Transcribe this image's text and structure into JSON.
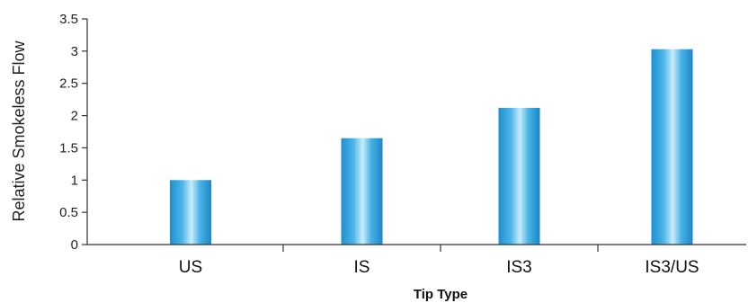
{
  "chart_data": {
    "type": "bar",
    "categories": [
      "US",
      "IS",
      "IS3",
      "IS3/US"
    ],
    "values": [
      1.0,
      1.65,
      2.12,
      3.03
    ],
    "title": "",
    "xlabel": "Tip Type",
    "ylabel": "Relative Smokeless Flow",
    "ylim": [
      0,
      3.5
    ],
    "yticks": [
      "0",
      "0.5",
      "1",
      "1.5",
      "2",
      "2.5",
      "3",
      "3.5"
    ],
    "grid": false,
    "legend": "none",
    "bar_color": "#2aa3dc"
  }
}
